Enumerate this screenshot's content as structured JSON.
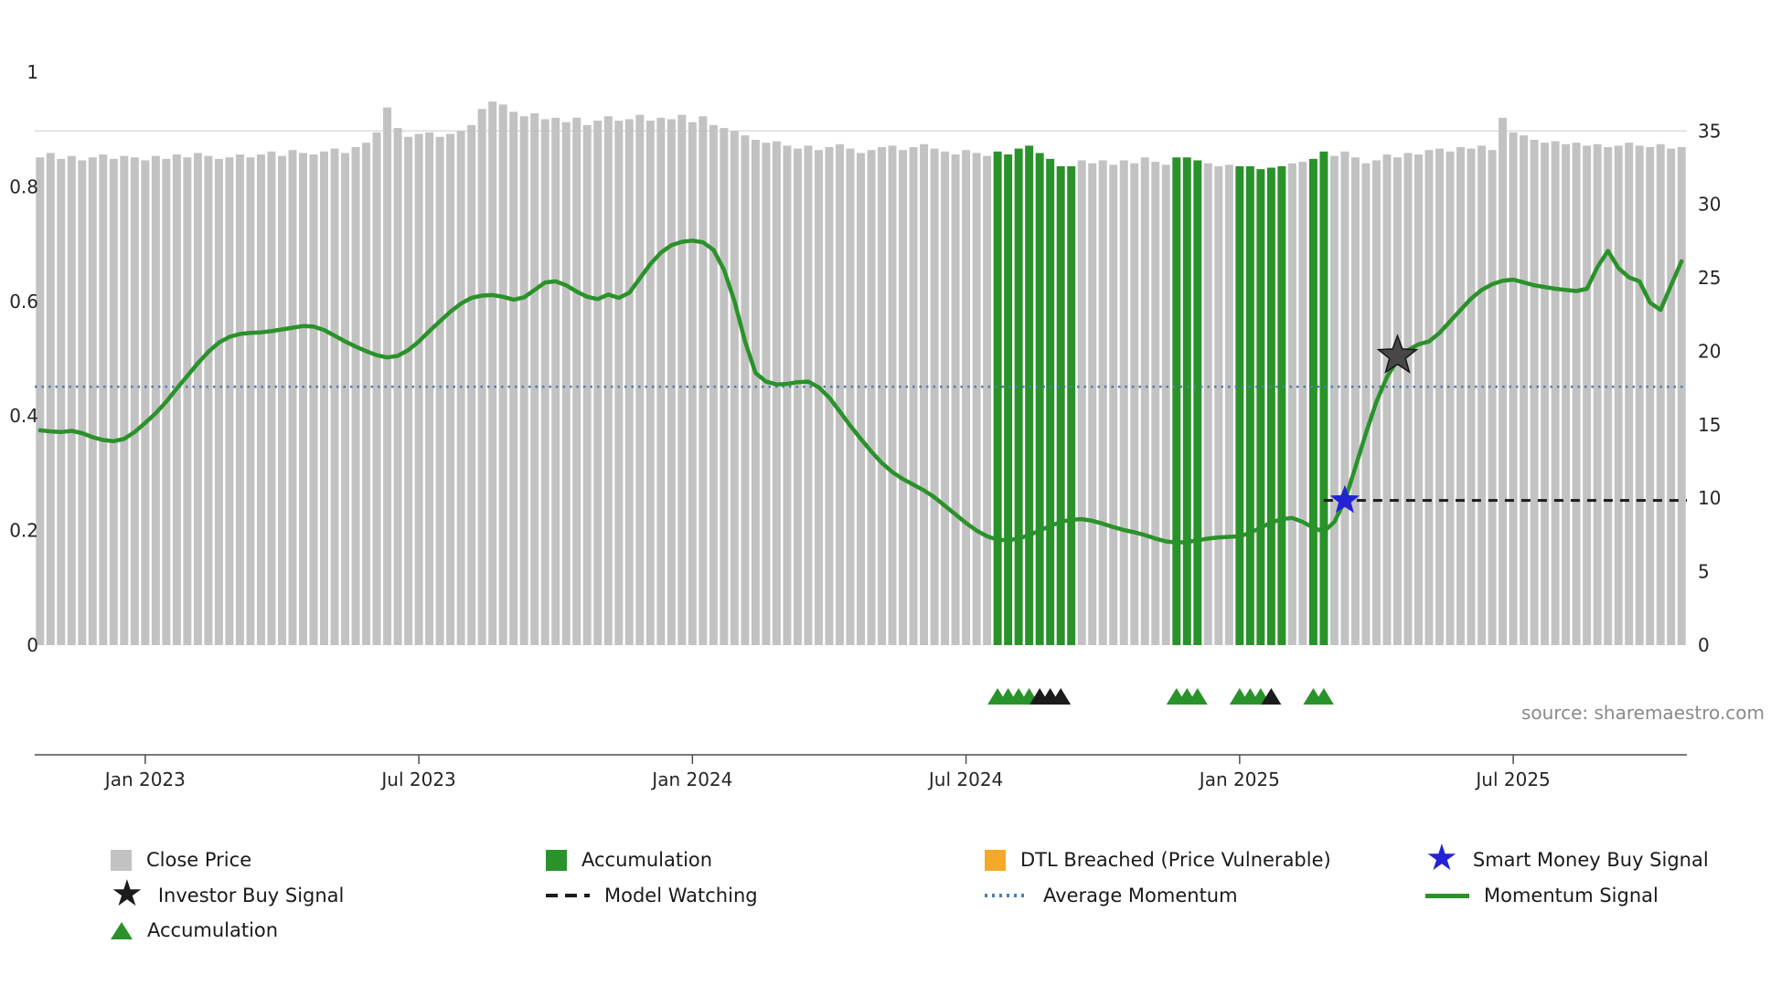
{
  "source_text": "source: sharemaestro.com",
  "colors": {
    "bar_gray": "#c2c2c2",
    "bar_green": "#2a922a",
    "momentum_green": "#2a922a",
    "avg_momentum_blue": "#4a7fb5",
    "model_watching_black": "#1c1c1c",
    "smart_money_blue": "#2323d6",
    "investor_star_fill": "#474747",
    "investor_star_edge": "#161616",
    "dtl_orange": "#f5a928",
    "axis_text": "#262626",
    "axis_line": "#4d4d4d",
    "gridline": "#dcdcdc",
    "muted_text": "#8a8a8a"
  },
  "chart_data": {
    "type": "combo",
    "title": "",
    "x_tick_labels": [
      "Jan 2023",
      "Jul 2023",
      "Jan 2024",
      "Jul 2024",
      "Jan 2025",
      "Jul 2025"
    ],
    "x_tick_indices": [
      10,
      36,
      62,
      88,
      114,
      140
    ],
    "left_axis": {
      "label": "",
      "max": 1,
      "ticks": [
        0,
        0.2,
        0.4,
        0.6,
        0.8,
        1
      ],
      "tick_labels": [
        "0",
        "0.2",
        "0.4",
        "0.6",
        "0.8",
        "1"
      ]
    },
    "right_axis": {
      "label": "",
      "max": 39,
      "ticks": [
        0,
        5,
        10,
        15,
        20,
        25,
        30,
        35
      ],
      "tick_labels": [
        "0",
        "5",
        "10",
        "15",
        "20",
        "25",
        "30",
        "35"
      ]
    },
    "bars": {
      "name": "Close Price",
      "axis": "right",
      "values": [
        33.2,
        33.5,
        33.1,
        33.3,
        33.0,
        33.2,
        33.4,
        33.1,
        33.3,
        33.2,
        33.0,
        33.3,
        33.1,
        33.4,
        33.2,
        33.5,
        33.3,
        33.1,
        33.2,
        33.4,
        33.2,
        33.4,
        33.6,
        33.3,
        33.7,
        33.5,
        33.4,
        33.6,
        33.8,
        33.5,
        33.9,
        34.2,
        34.9,
        36.6,
        35.2,
        34.6,
        34.8,
        34.9,
        34.6,
        34.8,
        35.0,
        35.4,
        36.5,
        37.0,
        36.8,
        36.3,
        36.0,
        36.2,
        35.8,
        35.9,
        35.6,
        35.9,
        35.4,
        35.7,
        36.0,
        35.7,
        35.8,
        36.1,
        35.7,
        35.9,
        35.8,
        36.1,
        35.6,
        36.0,
        35.4,
        35.2,
        35.0,
        34.7,
        34.4,
        34.2,
        34.3,
        34.0,
        33.8,
        34.0,
        33.7,
        33.9,
        34.1,
        33.8,
        33.5,
        33.7,
        33.9,
        34.0,
        33.7,
        33.9,
        34.1,
        33.8,
        33.6,
        33.4,
        33.7,
        33.5,
        33.3,
        33.6,
        33.4,
        33.8,
        34.0,
        33.5,
        33.1,
        32.6,
        32.6,
        33.0,
        32.8,
        33.0,
        32.7,
        33.0,
        32.8,
        33.2,
        32.9,
        32.7,
        33.2,
        33.2,
        33.0,
        32.8,
        32.6,
        32.7,
        32.6,
        32.6,
        32.4,
        32.5,
        32.6,
        32.8,
        32.9,
        33.1,
        33.6,
        33.3,
        33.6,
        33.2,
        32.8,
        33.0,
        33.4,
        33.2,
        33.5,
        33.4,
        33.7,
        33.8,
        33.6,
        33.9,
        33.8,
        34.0,
        33.7,
        35.9,
        34.9,
        34.7,
        34.4,
        34.2,
        34.3,
        34.1,
        34.2,
        34.0,
        34.1,
        33.9,
        34.0,
        34.2,
        34.0,
        33.9,
        34.1,
        33.8,
        33.9
      ],
      "green_indices": [
        91,
        92,
        93,
        94,
        95,
        96,
        97,
        98,
        108,
        109,
        110,
        114,
        115,
        116,
        117,
        118,
        121,
        122
      ]
    },
    "momentum": {
      "name": "Momentum Signal",
      "axis": "left",
      "values": [
        0.375,
        0.373,
        0.372,
        0.374,
        0.37,
        0.363,
        0.358,
        0.356,
        0.36,
        0.372,
        0.388,
        0.405,
        0.425,
        0.448,
        0.47,
        0.492,
        0.512,
        0.528,
        0.538,
        0.543,
        0.545,
        0.546,
        0.548,
        0.551,
        0.554,
        0.557,
        0.556,
        0.55,
        0.54,
        0.53,
        0.521,
        0.513,
        0.506,
        0.502,
        0.505,
        0.515,
        0.53,
        0.548,
        0.565,
        0.582,
        0.596,
        0.606,
        0.61,
        0.611,
        0.608,
        0.603,
        0.607,
        0.62,
        0.633,
        0.635,
        0.628,
        0.617,
        0.608,
        0.604,
        0.612,
        0.606,
        0.615,
        0.64,
        0.665,
        0.685,
        0.698,
        0.704,
        0.706,
        0.703,
        0.69,
        0.655,
        0.6,
        0.53,
        0.475,
        0.46,
        0.455,
        0.456,
        0.459,
        0.46,
        0.45,
        0.432,
        0.408,
        0.383,
        0.36,
        0.338,
        0.318,
        0.302,
        0.29,
        0.28,
        0.27,
        0.258,
        0.243,
        0.228,
        0.213,
        0.2,
        0.19,
        0.184,
        0.183,
        0.186,
        0.192,
        0.2,
        0.208,
        0.215,
        0.219,
        0.22,
        0.217,
        0.212,
        0.206,
        0.201,
        0.197,
        0.192,
        0.186,
        0.181,
        0.179,
        0.18,
        0.183,
        0.186,
        0.188,
        0.189,
        0.19,
        0.196,
        0.205,
        0.214,
        0.22,
        0.222,
        0.215,
        0.205,
        0.198,
        0.215,
        0.252,
        0.31,
        0.37,
        0.425,
        0.468,
        0.498,
        0.515,
        0.525,
        0.53,
        0.545,
        0.565,
        0.585,
        0.605,
        0.62,
        0.63,
        0.636,
        0.638,
        0.633,
        0.628,
        0.625,
        0.622,
        0.62,
        0.618,
        0.622,
        0.66,
        0.688,
        0.658,
        0.642,
        0.635,
        0.598,
        0.585,
        0.628,
        0.67
      ]
    },
    "average_momentum": {
      "name": "Average Momentum",
      "axis": "left",
      "value": 0.451,
      "style": "dotted"
    },
    "model_watching": {
      "name": "Model Watching",
      "axis": "left",
      "value": 0.2525,
      "start_index": 122,
      "style": "dashed"
    },
    "markers": {
      "smart_money_buy": {
        "name": "Smart Money Buy Signal",
        "index": 124,
        "value": 0.2525,
        "shape": "star"
      },
      "investor_buy": {
        "name": "Investor Buy Signal",
        "index": 129,
        "value": 0.505,
        "shape": "star"
      }
    },
    "accumulation_triangles": {
      "green_indices": [
        91,
        92,
        93,
        94,
        108,
        109,
        110,
        114,
        115,
        116,
        121,
        122
      ],
      "black_indices": [
        95,
        96,
        97,
        117
      ]
    }
  },
  "legend": {
    "rows": [
      [
        {
          "label": "Close Price",
          "swatch": "square",
          "color": "#c2c2c2",
          "icon": "gray-square-icon"
        },
        {
          "label": "Accumulation",
          "swatch": "square",
          "color": "#2a922a",
          "icon": "green-square-icon"
        },
        {
          "label": "DTL Breached (Price Vulnerable)",
          "swatch": "square",
          "color": "#f5a928",
          "icon": "orange-square-icon"
        },
        {
          "label": "Smart Money Buy Signal",
          "swatch": "star",
          "color": "#2323d6",
          "icon": "blue-star-icon"
        }
      ],
      [
        {
          "label": "Investor Buy Signal",
          "swatch": "star",
          "color": "#1c1c1c",
          "icon": "black-star-icon"
        },
        {
          "label": "Model Watching",
          "swatch": "dashed-line",
          "color": "#1c1c1c",
          "icon": "black-dashed-line-icon"
        },
        {
          "label": "Average Momentum",
          "swatch": "dotted-line",
          "color": "#4a7fb5",
          "icon": "blue-dotted-line-icon"
        },
        {
          "label": "Momentum Signal",
          "swatch": "line",
          "color": "#2a922a",
          "icon": "green-line-icon"
        }
      ],
      [
        {
          "label": "Accumulation",
          "swatch": "triangle",
          "color": "#2a922a",
          "icon": "green-triangle-icon"
        }
      ]
    ]
  }
}
